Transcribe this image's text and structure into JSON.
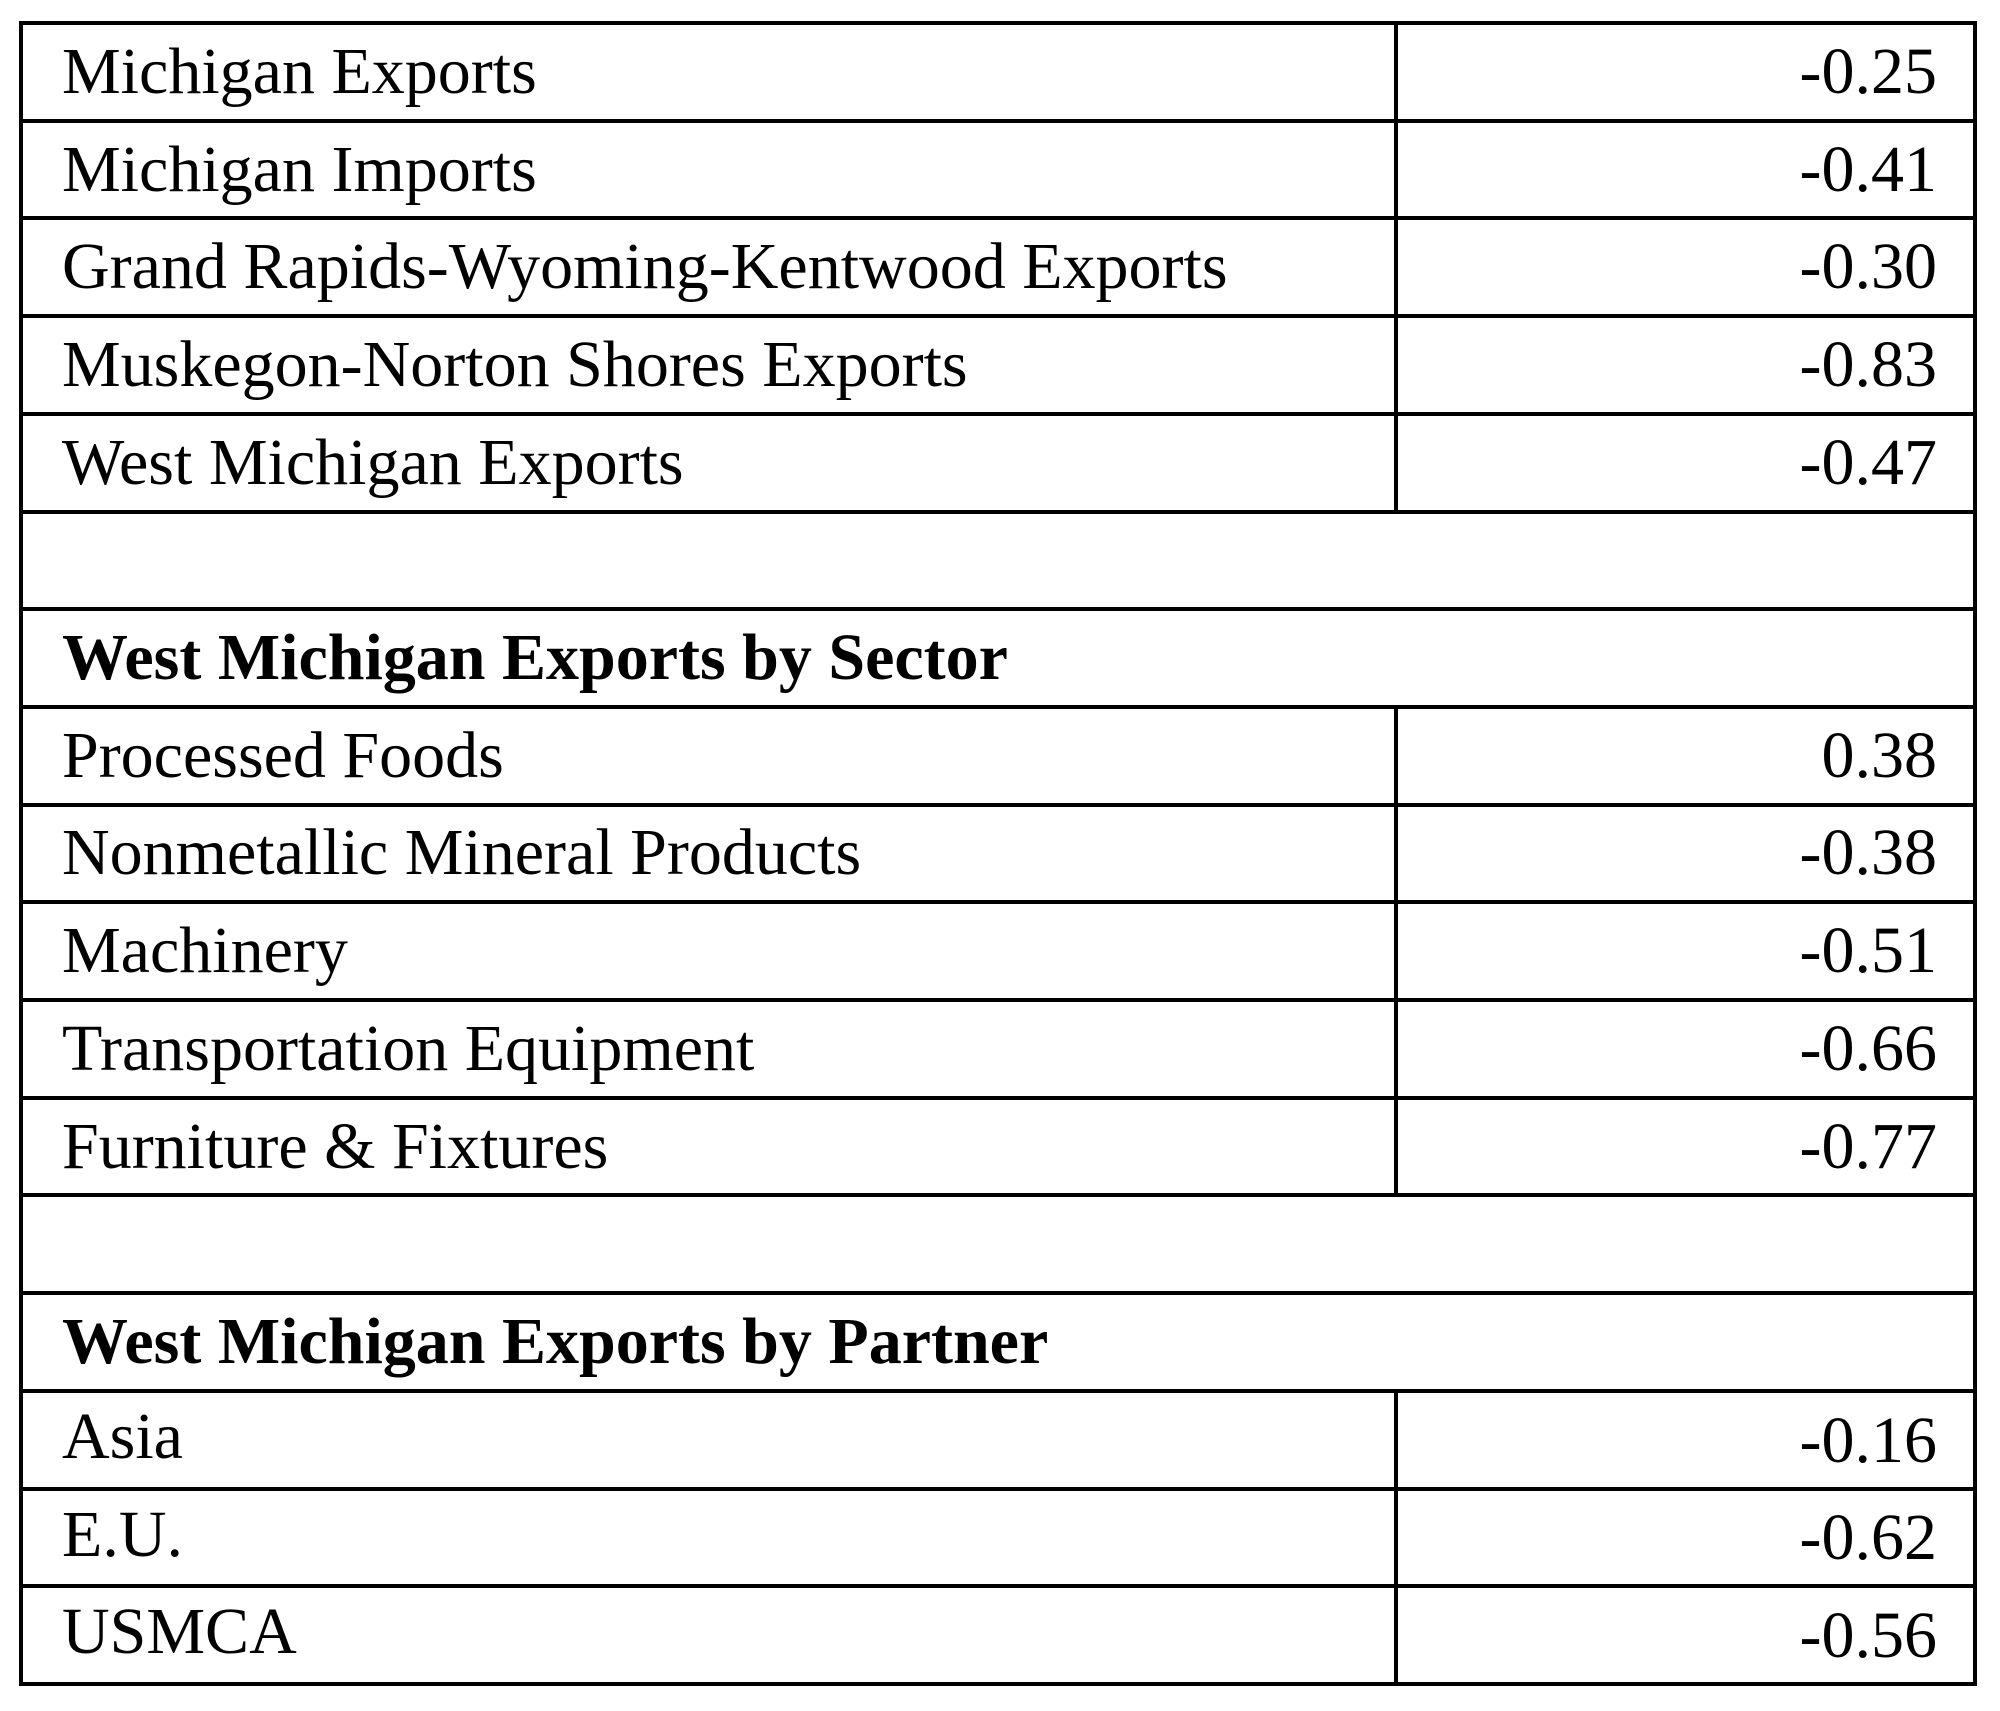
{
  "page": {
    "background": "#ffffff",
    "border_color": "#000000",
    "text_color": "#000000"
  },
  "chart_data": {
    "type": "table",
    "sections": [
      {
        "header": "",
        "rows": [
          [
            "Michigan Exports",
            -0.25
          ],
          [
            "Michigan Imports",
            -0.41
          ],
          [
            "Grand Rapids-Wyoming-Kentwood Exports",
            -0.3
          ],
          [
            "Muskegon-Norton Shores Exports",
            -0.83
          ],
          [
            "West Michigan Exports",
            -0.47
          ]
        ]
      },
      {
        "header": "West Michigan Exports by Sector",
        "rows": [
          [
            "Processed Foods",
            0.38
          ],
          [
            "Nonmetallic Mineral Products",
            -0.38
          ],
          [
            "Machinery",
            -0.51
          ],
          [
            "Transportation Equipment",
            -0.66
          ],
          [
            "Furniture & Fixtures",
            -0.77
          ]
        ]
      },
      {
        "header": "West Michigan Exports by Partner",
        "rows": [
          [
            "Asia",
            -0.16
          ],
          [
            "E.U.",
            -0.62
          ],
          [
            "USMCA",
            -0.56
          ]
        ]
      }
    ]
  },
  "rows": [
    {
      "type": "data",
      "label": "Michigan Exports",
      "value": "-0.25"
    },
    {
      "type": "data",
      "label": "Michigan Imports",
      "value": "-0.41"
    },
    {
      "type": "data",
      "label": "Grand Rapids-Wyoming-Kentwood Exports",
      "value": "-0.30"
    },
    {
      "type": "data",
      "label": "Muskegon-Norton Shores Exports",
      "value": "-0.83"
    },
    {
      "type": "data",
      "label": "West Michigan Exports",
      "value": "-0.47"
    },
    {
      "type": "spacer",
      "label": "",
      "value": ""
    },
    {
      "type": "header",
      "label": "West Michigan Exports by Sector",
      "value": ""
    },
    {
      "type": "data",
      "label": "Processed Foods",
      "value": "0.38"
    },
    {
      "type": "data",
      "label": "Nonmetallic Mineral Products",
      "value": "-0.38"
    },
    {
      "type": "data",
      "label": "Machinery",
      "value": "-0.51"
    },
    {
      "type": "data",
      "label": "Transportation Equipment",
      "value": "-0.66"
    },
    {
      "type": "data",
      "label": "Furniture & Fixtures",
      "value": "-0.77"
    },
    {
      "type": "spacer",
      "label": "",
      "value": ""
    },
    {
      "type": "header",
      "label": "West Michigan Exports by Partner",
      "value": ""
    },
    {
      "type": "data",
      "label": "Asia",
      "value": "-0.16"
    },
    {
      "type": "data",
      "label": "E.U.",
      "value": "-0.62"
    },
    {
      "type": "data",
      "label": "USMCA",
      "value": "-0.56"
    }
  ]
}
